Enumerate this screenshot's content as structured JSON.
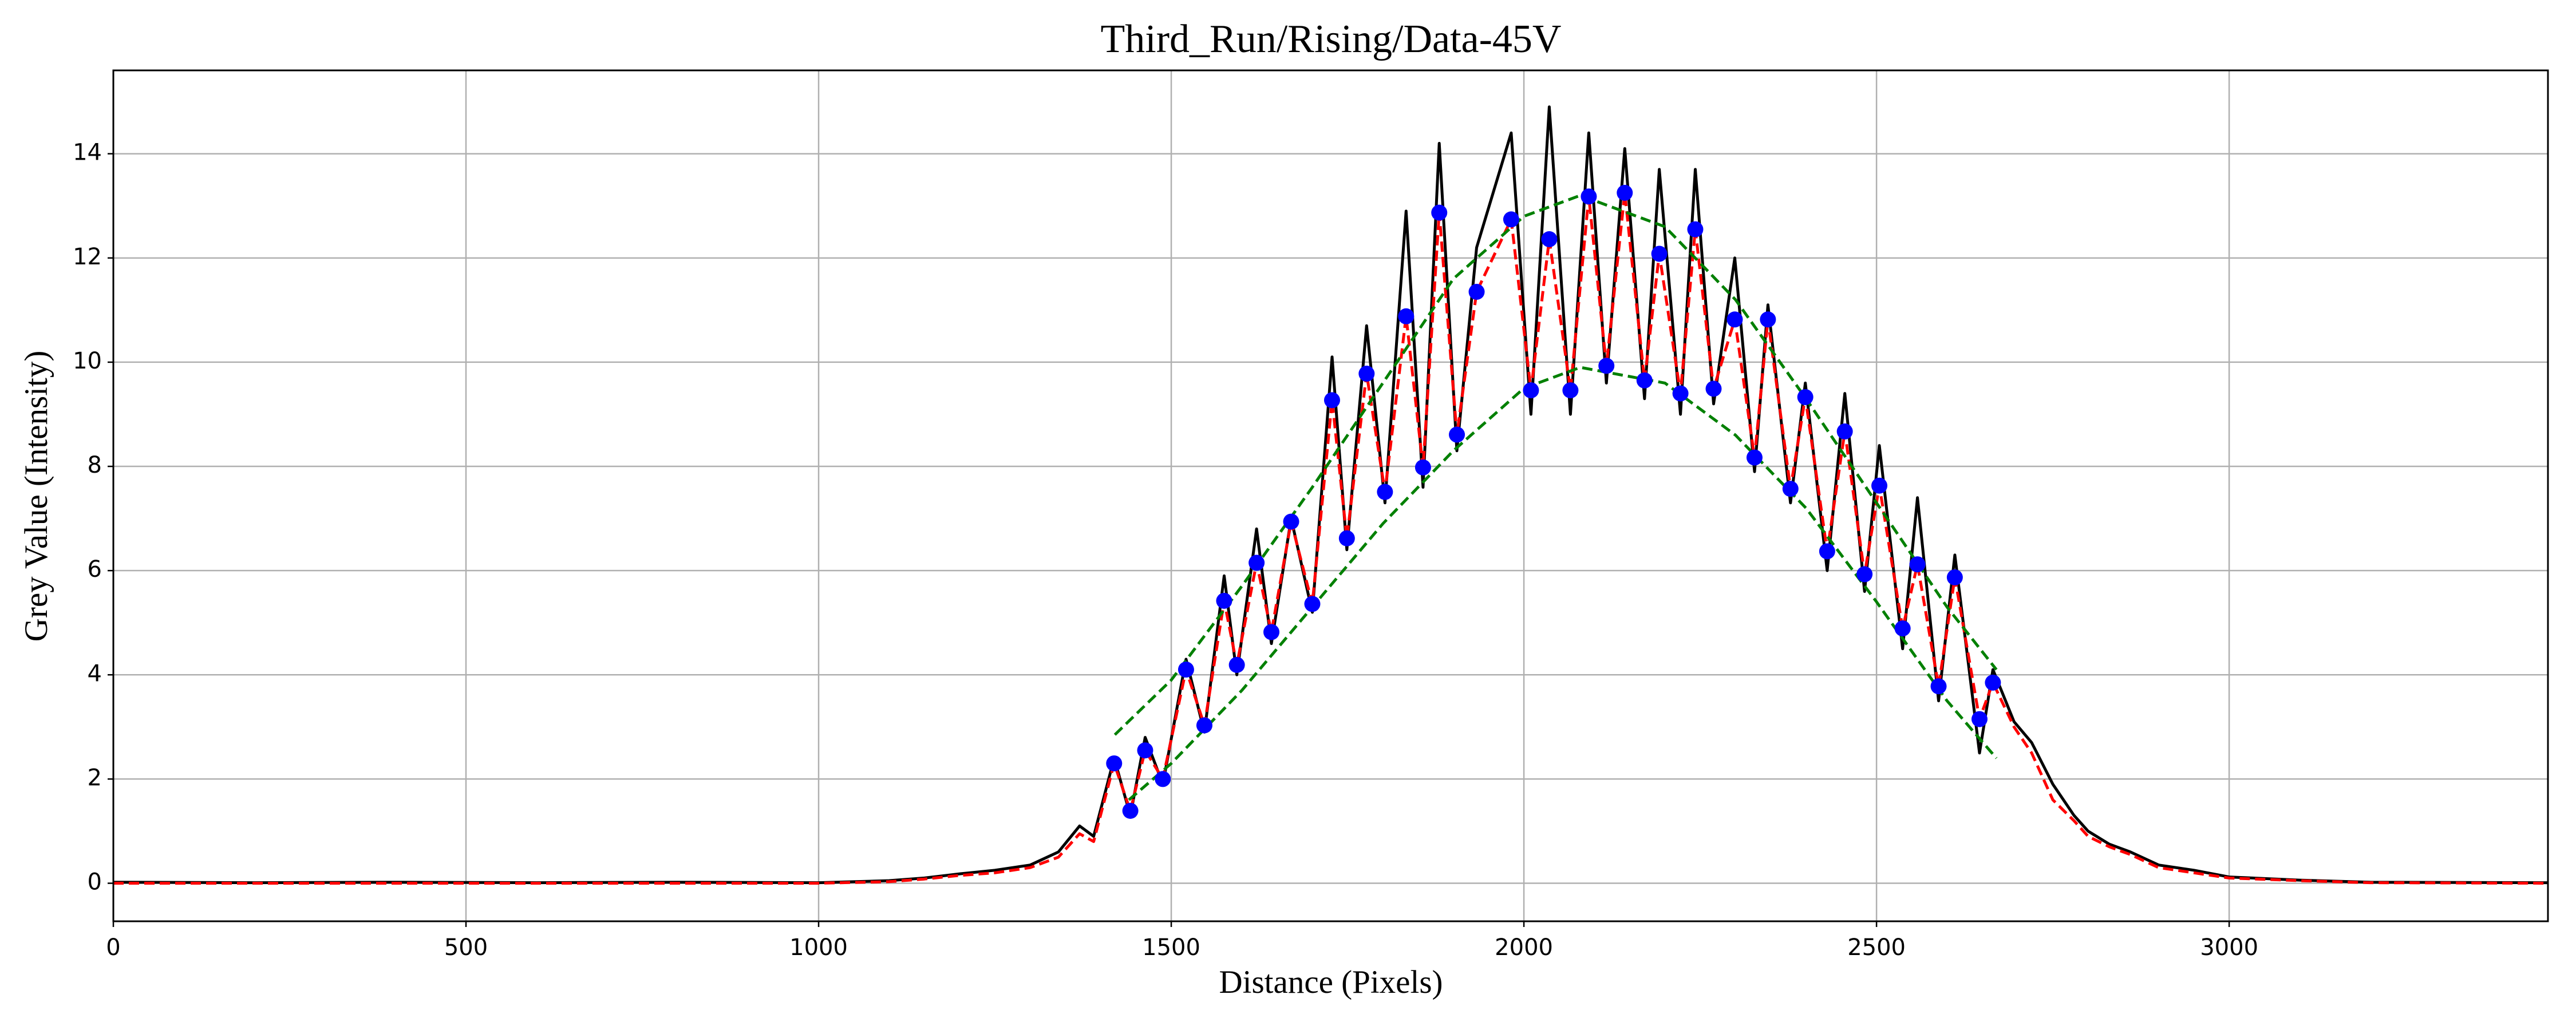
{
  "chart_data": {
    "type": "line",
    "title": "Third_Run/Rising/Data-45V",
    "xlabel": "Distance (Pixels)",
    "ylabel": "Grey Value (Intensity)",
    "xlim": [
      0,
      3452
    ],
    "ylim": [
      -0.73,
      15.6
    ],
    "xticks": [
      0,
      500,
      1000,
      1500,
      2000,
      2500,
      3000
    ],
    "yticks": [
      0,
      2,
      4,
      6,
      8,
      10,
      12,
      14
    ],
    "grid": true,
    "series": [
      {
        "color": "#000000",
        "linestyle": "solid",
        "x": [
          0,
          200,
          400,
          600,
          800,
          1000,
          1100,
          1150,
          1200,
          1250,
          1300,
          1340,
          1370,
          1390,
          1419,
          1442,
          1463,
          1488,
          1521,
          1547,
          1575,
          1593,
          1621,
          1642,
          1670,
          1700,
          1728,
          1749,
          1777,
          1803,
          1833,
          1857,
          1880,
          1905,
          1933,
          1982,
          2010,
          2036,
          2066,
          2092,
          2117,
          2143,
          2171,
          2192,
          2222,
          2243,
          2269,
          2299,
          2327,
          2346,
          2378,
          2399,
          2430,
          2455,
          2483,
          2504,
          2537,
          2558,
          2588,
          2611,
          2646,
          2665,
          2695,
          2720,
          2750,
          2780,
          2800,
          2830,
          2860,
          2900,
          2950,
          3000,
          3100,
          3200,
          3452
        ],
        "values": [
          0.02,
          0.01,
          0.02,
          0.01,
          0.02,
          0.01,
          0.05,
          0.1,
          0.18,
          0.25,
          0.35,
          0.6,
          1.1,
          0.9,
          2.4,
          1.3,
          2.8,
          1.9,
          4.3,
          2.9,
          5.9,
          4.0,
          6.8,
          4.6,
          7.0,
          5.2,
          10.1,
          6.4,
          10.7,
          7.3,
          12.9,
          7.6,
          14.2,
          8.3,
          12.2,
          14.4,
          9.0,
          14.9,
          9.0,
          14.4,
          9.6,
          14.1,
          9.3,
          13.7,
          9.0,
          13.7,
          9.2,
          12.0,
          7.9,
          11.1,
          7.3,
          9.6,
          6.0,
          9.4,
          5.6,
          8.4,
          4.5,
          7.4,
          3.5,
          6.3,
          2.5,
          4.1,
          3.1,
          2.7,
          1.9,
          1.3,
          1.0,
          0.75,
          0.6,
          0.35,
          0.25,
          0.12,
          0.06,
          0.02,
          0.01
        ]
      },
      {
        "color": "#ff0000",
        "linestyle": "dashed",
        "x": [
          0,
          200,
          400,
          600,
          800,
          1000,
          1100,
          1150,
          1200,
          1250,
          1300,
          1340,
          1370,
          1390,
          1419,
          1442,
          1463,
          1488,
          1521,
          1547,
          1575,
          1593,
          1621,
          1642,
          1670,
          1700,
          1728,
          1749,
          1777,
          1803,
          1833,
          1857,
          1880,
          1905,
          1933,
          1982,
          2010,
          2036,
          2066,
          2092,
          2117,
          2143,
          2171,
          2192,
          2222,
          2243,
          2269,
          2299,
          2327,
          2346,
          2378,
          2399,
          2430,
          2455,
          2483,
          2504,
          2537,
          2558,
          2588,
          2611,
          2646,
          2665,
          2695,
          2720,
          2750,
          2780,
          2800,
          2830,
          2860,
          2900,
          2950,
          3000,
          3100,
          3200,
          3452
        ],
        "values": [
          0,
          0,
          0,
          0,
          0,
          0,
          0.03,
          0.08,
          0.15,
          0.2,
          0.3,
          0.5,
          0.95,
          0.8,
          2.3,
          1.39,
          2.55,
          2.0,
          4.1,
          3.03,
          5.42,
          4.19,
          6.15,
          4.82,
          6.94,
          5.36,
          9.27,
          6.62,
          9.78,
          7.51,
          10.88,
          7.98,
          12.87,
          8.61,
          11.35,
          12.74,
          9.46,
          12.36,
          9.46,
          13.18,
          9.93,
          13.25,
          9.65,
          12.08,
          9.4,
          12.55,
          9.49,
          10.82,
          8.17,
          10.82,
          7.57,
          9.33,
          6.37,
          8.67,
          5.93,
          7.63,
          4.89,
          6.12,
          3.78,
          5.87,
          3.15,
          3.85,
          3.0,
          2.5,
          1.6,
          1.2,
          0.9,
          0.7,
          0.55,
          0.3,
          0.2,
          0.1,
          0.05,
          0.01,
          0
        ]
      },
      {
        "color": "#008000",
        "linestyle": "dashed",
        "x": [
          1420,
          1500,
          1600,
          1700,
          1800,
          1900,
          2000,
          2080,
          2200,
          2300,
          2400,
          2500,
          2600,
          2670
        ],
        "values": [
          2.85,
          3.9,
          5.7,
          7.6,
          9.6,
          11.6,
          12.8,
          13.2,
          12.6,
          11.2,
          9.3,
          7.3,
          5.3,
          4.1
        ]
      },
      {
        "color": "#008000",
        "linestyle": "dashed",
        "x": [
          1440,
          1500,
          1600,
          1700,
          1800,
          1900,
          2000,
          2080,
          2200,
          2300,
          2400,
          2500,
          2600,
          2670
        ],
        "values": [
          1.6,
          2.3,
          3.7,
          5.3,
          6.9,
          8.3,
          9.5,
          9.9,
          9.6,
          8.6,
          7.2,
          5.4,
          3.5,
          2.4
        ]
      },
      {
        "color": "#0000ff",
        "linestyle": "none",
        "marker": "o",
        "x": [
          1419,
          1442,
          1463,
          1488,
          1521,
          1547,
          1575,
          1593,
          1621,
          1642,
          1670,
          1700,
          1728,
          1749,
          1777,
          1803,
          1833,
          1857,
          1880,
          1905,
          1933,
          1982,
          2010,
          2036,
          2066,
          2092,
          2117,
          2143,
          2171,
          2192,
          2222,
          2243,
          2269,
          2299,
          2327,
          2346,
          2378,
          2399,
          2430,
          2455,
          2483,
          2504,
          2537,
          2558,
          2588,
          2611,
          2646,
          2665
        ],
        "values": [
          2.3,
          1.39,
          2.55,
          2.0,
          4.1,
          3.03,
          5.42,
          4.19,
          6.15,
          4.82,
          6.94,
          5.36,
          9.27,
          6.62,
          9.78,
          7.51,
          10.88,
          7.98,
          12.87,
          8.61,
          11.35,
          12.74,
          9.46,
          12.36,
          9.46,
          13.18,
          9.93,
          13.25,
          9.65,
          12.08,
          9.4,
          12.55,
          9.49,
          10.82,
          8.17,
          10.82,
          7.57,
          9.33,
          6.37,
          8.67,
          5.93,
          7.63,
          4.89,
          6.12,
          3.78,
          5.87,
          3.15,
          3.85
        ]
      }
    ]
  }
}
